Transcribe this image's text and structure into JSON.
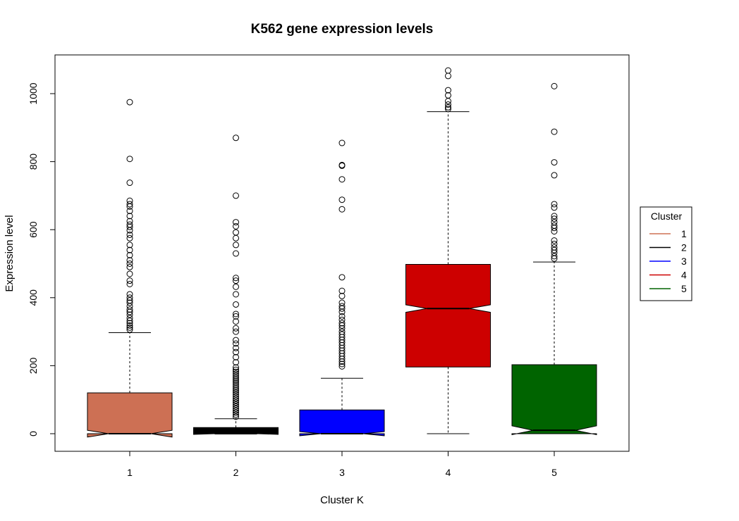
{
  "chart_data": {
    "type": "box",
    "title": "K562 gene expression levels",
    "xlabel": "Cluster K",
    "ylabel": "Expression level",
    "categories": [
      "1",
      "2",
      "3",
      "4",
      "5"
    ],
    "ylim": [
      -50,
      1110
    ],
    "yticks": [
      0,
      200,
      400,
      600,
      800,
      1000
    ],
    "notched": true,
    "boxes": [
      {
        "category": "1",
        "color": "#CD7054",
        "whisker_low": 0,
        "q1": 0,
        "median": 0,
        "q3": 120,
        "whisker_high": 297,
        "notch": [
          -10,
          10
        ],
        "outliers": [
          975,
          808,
          738,
          685,
          675,
          668,
          655,
          640,
          625,
          615,
          608,
          598,
          585,
          575,
          555,
          540,
          525,
          510,
          500,
          490,
          470,
          450,
          440,
          410,
          400,
          392,
          385,
          375,
          365,
          358,
          350,
          340,
          332,
          325,
          318,
          312,
          306
        ]
      },
      {
        "category": "2",
        "color": "#000000",
        "whisker_low": 0,
        "q1": 0,
        "median": 0,
        "q3": 18,
        "whisker_high": 44,
        "notch": [
          -2,
          2
        ],
        "outliers": [
          870,
          700,
          622,
          610,
          592,
          575,
          555,
          530,
          458,
          450,
          432,
          410,
          380,
          352,
          345,
          330,
          310,
          300,
          275,
          265,
          252,
          240,
          225,
          210,
          195,
          188,
          182,
          176,
          170,
          164,
          158,
          152,
          146,
          140,
          134,
          128,
          122,
          116,
          110,
          104,
          98,
          92,
          86,
          80,
          74,
          68,
          62,
          56,
          50
        ]
      },
      {
        "category": "3",
        "color": "#0000FF",
        "whisker_low": 0,
        "q1": 0,
        "median": 0,
        "q3": 70,
        "whisker_high": 163,
        "notch": [
          -6,
          6
        ],
        "outliers": [
          855,
          790,
          788,
          748,
          688,
          660,
          460,
          420,
          405,
          385,
          375,
          368,
          358,
          345,
          335,
          325,
          318,
          310,
          300,
          292,
          284,
          276,
          268,
          260,
          252,
          244,
          236,
          228,
          220,
          212,
          205,
          198
        ]
      },
      {
        "category": "4",
        "color": "#CD0000",
        "whisker_low": 0,
        "q1": 196,
        "median": 368,
        "q3": 498,
        "whisker_high": 947,
        "notch": [
          357,
          379
        ],
        "outliers": [
          1068,
          1052,
          1010,
          995,
          978,
          968,
          960,
          955
        ]
      },
      {
        "category": "5",
        "color": "#006400",
        "whisker_low": 0,
        "q1": 0,
        "median": 10,
        "q3": 203,
        "whisker_high": 505,
        "notch": [
          -3,
          23
        ],
        "outliers": [
          1022,
          888,
          798,
          760,
          675,
          665,
          640,
          632,
          622,
          612,
          605,
          595,
          568,
          558,
          548,
          540,
          532,
          522,
          515
        ]
      }
    ],
    "legend": {
      "title": "Cluster",
      "position": "right",
      "entries": [
        {
          "label": "1",
          "color": "#CD7054"
        },
        {
          "label": "2",
          "color": "#000000"
        },
        {
          "label": "3",
          "color": "#0000FF"
        },
        {
          "label": "4",
          "color": "#CD0000"
        },
        {
          "label": "5",
          "color": "#006400"
        }
      ]
    }
  }
}
